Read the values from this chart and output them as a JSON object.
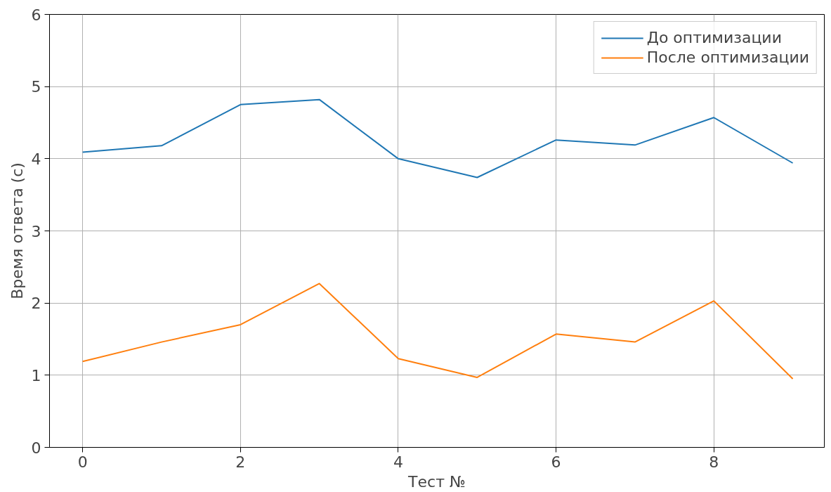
{
  "chart_data": {
    "type": "line",
    "xlabel": "Тест №",
    "ylabel": "Время ответа (с)",
    "x": [
      0,
      1,
      2,
      3,
      4,
      5,
      6,
      7,
      8,
      9
    ],
    "series": [
      {
        "name": "До оптимизации",
        "color": "#1f77b4",
        "values": [
          4.09,
          4.18,
          4.75,
          4.82,
          4.0,
          3.74,
          4.26,
          4.19,
          4.57,
          3.94
        ]
      },
      {
        "name": "После оптимизации",
        "color": "#ff7f0e",
        "values": [
          1.19,
          1.46,
          1.7,
          2.27,
          1.23,
          0.97,
          1.57,
          1.46,
          2.03,
          0.95
        ]
      }
    ],
    "xlim": [
      -0.42,
      9.4
    ],
    "ylim": [
      0,
      6
    ],
    "xticks": [
      0,
      2,
      4,
      6,
      8
    ],
    "yticks": [
      0,
      1,
      2,
      3,
      4,
      5,
      6
    ],
    "grid": true,
    "legend": "top right",
    "marker": "none",
    "line_style": "solid"
  }
}
